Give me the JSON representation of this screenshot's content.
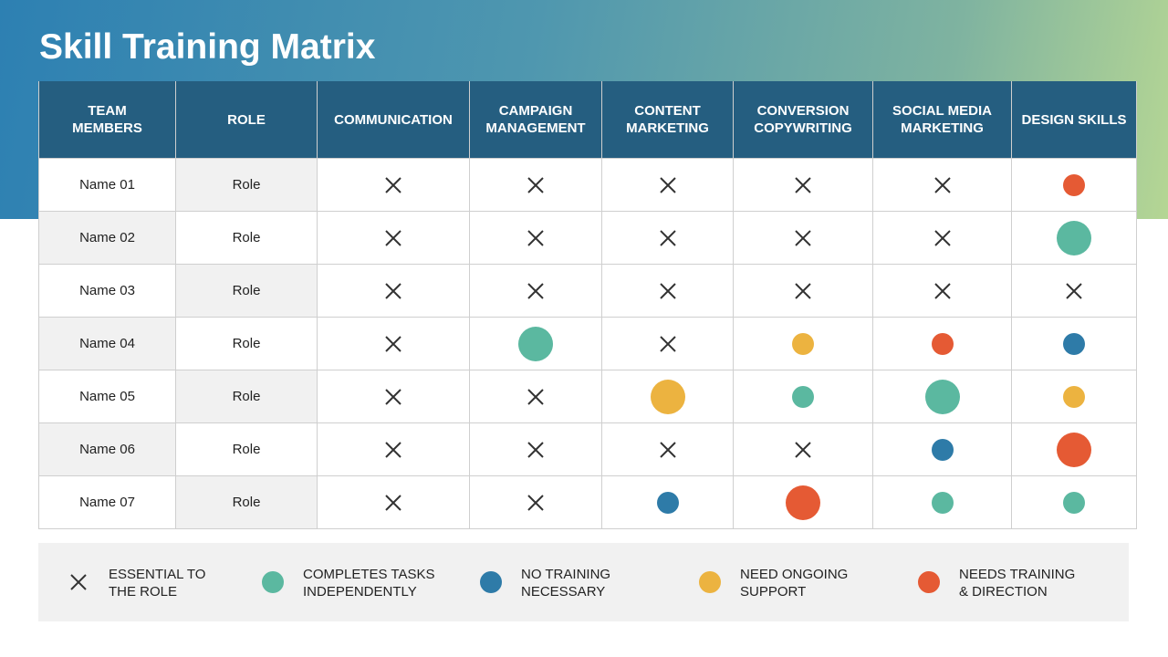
{
  "title": "Skill Training Matrix",
  "table": {
    "headers": [
      "TEAM MEMBERS",
      "ROLE",
      "COMMUNICATION",
      "CAMPAIGN MANAGEMENT",
      "CONTENT MARKETING",
      "CONVERSION COPYWRITING",
      "SOCIAL MEDIA MARKETING",
      "DESIGN SKILLS"
    ],
    "rows": [
      {
        "name": "Name 01",
        "role": "Role",
        "cells": [
          0,
          0,
          0,
          0,
          0,
          4
        ]
      },
      {
        "name": "Name 02",
        "role": "Role",
        "cells": [
          0,
          0,
          0,
          0,
          0,
          1
        ]
      },
      {
        "name": "Name 03",
        "role": "Role",
        "cells": [
          0,
          0,
          0,
          0,
          0,
          0
        ]
      },
      {
        "name": "Name 04",
        "role": "Role",
        "cells": [
          0,
          1,
          0,
          3,
          4,
          2
        ]
      },
      {
        "name": "Name 05",
        "role": "Role",
        "cells": [
          0,
          0,
          3,
          1,
          1,
          3
        ]
      },
      {
        "name": "Name 06",
        "role": "Role",
        "cells": [
          0,
          0,
          0,
          0,
          2,
          4
        ]
      },
      {
        "name": "Name 07",
        "role": "Role",
        "cells": [
          0,
          0,
          2,
          4,
          1,
          1
        ]
      }
    ]
  },
  "legend": [
    {
      "label": "ESSENTIAL TO THE ROLE",
      "symbol": "cross",
      "color": "#333333"
    },
    {
      "label": "COMPLETES TASKS INDEPENDENTLY",
      "symbol": "dot",
      "color": "#5bb8a0"
    },
    {
      "label": "NO TRAINING NECESSARY",
      "symbol": "dot",
      "color": "#2e7ba8"
    },
    {
      "label": "NEED ONGOING SUPPORT",
      "symbol": "dot",
      "color": "#ecb340"
    },
    {
      "label": "NEEDS TRAINING & DIRECTION",
      "symbol": "dot",
      "color": "#e55a34"
    }
  ]
}
